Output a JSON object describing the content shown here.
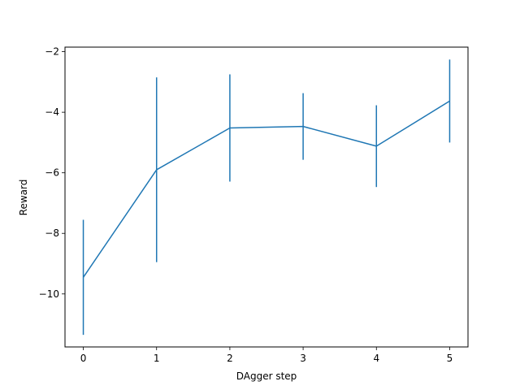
{
  "chart_data": {
    "type": "line",
    "title": "",
    "xlabel": "DAgger step",
    "ylabel": "Reward",
    "x": [
      0,
      1,
      2,
      3,
      4,
      5
    ],
    "xlim": [
      -0.25,
      5.25
    ],
    "ylim": [
      -11.75,
      -1.85
    ],
    "xticks": [
      0,
      1,
      2,
      3,
      4,
      5
    ],
    "xtick_labels": [
      "0",
      "1",
      "2",
      "3",
      "4",
      "5"
    ],
    "yticks": [
      -10,
      -8,
      -6,
      -4,
      -2
    ],
    "ytick_labels": [
      "−10",
      "−8",
      "−6",
      "−4",
      "−2"
    ],
    "grid": false,
    "series": [
      {
        "values": [
          -9.45,
          -5.9,
          -4.52,
          -4.47,
          -5.12,
          -3.63
        ],
        "error": [
          1.9,
          3.05,
          1.77,
          1.1,
          1.35,
          1.37
        ],
        "color": "#1f77b4"
      }
    ]
  }
}
